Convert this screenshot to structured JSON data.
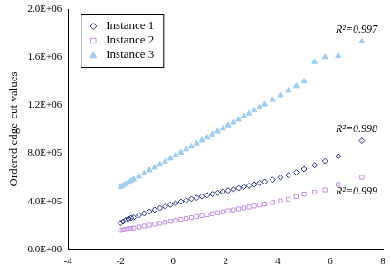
{
  "chart_data": {
    "type": "scatter",
    "y_label": "Ordered edge-cut values",
    "x": [
      -2.0,
      -1.9,
      -1.8,
      -1.7,
      -1.6,
      -1.5,
      -1.3,
      -1.1,
      -0.9,
      -0.7,
      -0.5,
      -0.3,
      -0.1,
      0.1,
      0.3,
      0.5,
      0.7,
      0.9,
      1.1,
      1.3,
      1.5,
      1.7,
      1.9,
      2.1,
      2.3,
      2.5,
      2.7,
      2.9,
      3.1,
      3.3,
      3.5,
      3.8,
      4.1,
      4.4,
      4.7,
      5.0,
      5.4,
      5.8,
      6.3,
      7.2
    ],
    "series": [
      {
        "name": "Instance 1",
        "color": "#1f2a80",
        "marker": "open diamond",
        "values": [
          220000,
          232000,
          245000,
          255000,
          262000,
          266000,
          285000,
          300000,
          315000,
          330000,
          344000,
          358000,
          372000,
          385000,
          397000,
          408000,
          420000,
          430000,
          441000,
          451000,
          461000,
          470000,
          480000,
          490000,
          500000,
          510000,
          520000,
          530000,
          541000,
          552000,
          563000,
          580000,
          598000,
          618000,
          642000,
          668000,
          700000,
          735000,
          775000,
          905000
        ]
      },
      {
        "name": "Instance 2",
        "color": "#c58ee0",
        "marker": "open square",
        "values": [
          158000,
          162000,
          166000,
          170000,
          174000,
          178000,
          186000,
          194000,
          202000,
          210000,
          218000,
          226000,
          234000,
          242000,
          250000,
          258000,
          265000,
          273000,
          281000,
          289000,
          297000,
          305000,
          313000,
          321000,
          329000,
          337000,
          345000,
          353000,
          361000,
          369000,
          377000,
          390000,
          403000,
          418000,
          440000,
          460000,
          475000,
          495000,
          540000,
          600000
        ]
      },
      {
        "name": "Instance 3",
        "color": "#9dcdf0",
        "marker": "triangle",
        "values": [
          520000,
          532000,
          545000,
          556000,
          570000,
          583000,
          606000,
          632000,
          658000,
          681000,
          707000,
          731000,
          757000,
          783000,
          806000,
          833000,
          857000,
          882000,
          908000,
          931000,
          958000,
          982000,
          1006000,
          1033000,
          1057000,
          1081000,
          1108000,
          1131000,
          1158000,
          1182000,
          1208000,
          1245000,
          1283000,
          1322000,
          1360000,
          1400000,
          1560000,
          1600000,
          1610000,
          1730000
        ]
      }
    ],
    "annotations": [
      {
        "text": "R²=0.997",
        "x": 7.0,
        "y": 1830000
      },
      {
        "text": "R²=0.998",
        "x": 7.0,
        "y": 1000000
      },
      {
        "text": "R²=0.999",
        "x": 7.0,
        "y": 480000
      }
    ],
    "xlim": [
      -4,
      8
    ],
    "xticks": [
      -4,
      -2,
      0,
      2,
      4,
      6,
      8
    ],
    "ylim": [
      0,
      2000000
    ],
    "yticks": [
      {
        "value": 0,
        "label": "0.0E+00"
      },
      {
        "value": 400000,
        "label": "4.0E+05"
      },
      {
        "value": 800000,
        "label": "8.0E+05"
      },
      {
        "value": 1200000,
        "label": "1.2E+06"
      },
      {
        "value": 1600000,
        "label": "1.6E+06"
      },
      {
        "value": 2000000,
        "label": "2.0E+06"
      }
    ],
    "grid": false,
    "legend": "upper left"
  }
}
